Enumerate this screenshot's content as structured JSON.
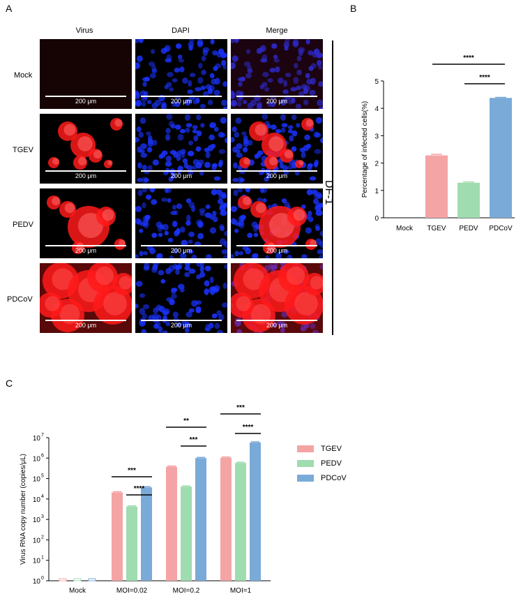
{
  "panels": {
    "a": "A",
    "b": "B",
    "c": "C"
  },
  "panel_a": {
    "columns": [
      "Virus",
      "DAPI",
      "Merge"
    ],
    "rows": [
      "Mock",
      "TGEV",
      "PEDV",
      "PDCoV"
    ],
    "scale_label": "200 μm",
    "cell_line": "DF-1",
    "colors": {
      "virus": "#ff1a1a",
      "dapi": "#1a33ff",
      "background": "#000000"
    }
  },
  "chart_data": [
    {
      "type": "bar",
      "categories": [
        "Mock",
        "TGEV",
        "PEDV",
        "PDCoV"
      ],
      "values": [
        0,
        2.28,
        1.28,
        4.38
      ],
      "errors": [
        0,
        0.04,
        0.03,
        0.02
      ],
      "colors": [
        "#f4a4a4",
        "#f4a4a4",
        "#9fdcb0",
        "#7aaad8"
      ],
      "ylabel": "Percentage of infected cells(%)",
      "ylim": [
        0,
        5
      ],
      "yticks": [
        "0",
        "1",
        "2",
        "3",
        "4",
        "5"
      ],
      "significance": [
        {
          "from": "TGEV",
          "to": "PDCoV",
          "label": "****"
        },
        {
          "from": "PEDV",
          "to": "PDCoV",
          "label": "****"
        }
      ]
    },
    {
      "type": "bar",
      "scale": "log",
      "categories": [
        "Mock",
        "MOI=0.02",
        "MOI=0.2",
        "MOI=1"
      ],
      "series": [
        {
          "name": "TGEV",
          "color": "#f4a4a4",
          "values": [
            1,
            21000,
            380000,
            1050000
          ]
        },
        {
          "name": "PEDV",
          "color": "#9fdcb0",
          "values": [
            1,
            4300,
            40000,
            580000
          ]
        },
        {
          "name": "PDCoV",
          "color": "#7aaad8",
          "values": [
            1,
            37000,
            1000000,
            5800000
          ]
        }
      ],
      "ylabel": "Virus RNA copy number (copies/μL)",
      "ylim": [
        1,
        10000000
      ],
      "yticks": [
        "10",
        "10",
        "10",
        "10",
        "10",
        "10",
        "10",
        "10"
      ],
      "ytick_exponents": [
        "0",
        "1",
        "2",
        "3",
        "4",
        "5",
        "6",
        "7"
      ],
      "legend_position": "right",
      "significance": [
        {
          "group": "MOI=0.02",
          "from": "TGEV",
          "to": "PDCoV",
          "label": "***"
        },
        {
          "group": "MOI=0.02",
          "from": "PEDV",
          "to": "PDCoV",
          "label": "****"
        },
        {
          "group": "MOI=0.2",
          "from": "TGEV",
          "to": "PDCoV",
          "label": "**"
        },
        {
          "group": "MOI=0.2",
          "from": "PEDV",
          "to": "PDCoV",
          "label": "***"
        },
        {
          "group": "MOI=1",
          "from": "TGEV",
          "to": "PDCoV",
          "label": "***"
        },
        {
          "group": "MOI=1",
          "from": "PEDV",
          "to": "PDCoV",
          "label": "****"
        }
      ]
    }
  ]
}
